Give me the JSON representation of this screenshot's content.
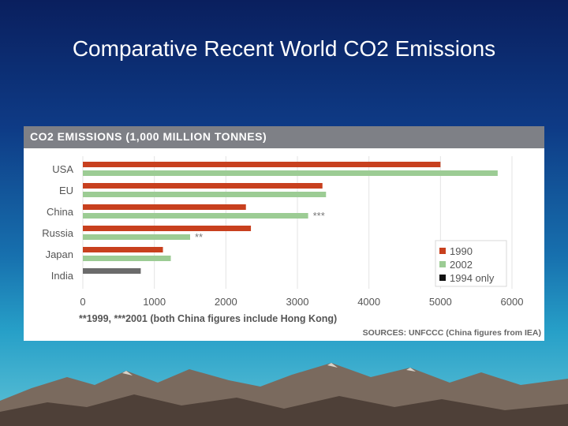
{
  "slide": {
    "title": "Comparative Recent World CO2 Emissions"
  },
  "colors": {
    "series_1990": "#c8401e",
    "series_2002": "#9ccc94",
    "series_1994": "#6b6b6b",
    "header_bg": "#7e8086"
  },
  "chart_data": {
    "type": "bar",
    "orientation": "horizontal",
    "title": "CO2 EMISSIONS (1,000 MILLION TONNES)",
    "categories": [
      "USA",
      "EU",
      "China",
      "Russia",
      "Japan",
      "India"
    ],
    "series": [
      {
        "name": "1990",
        "values": [
          5000,
          3350,
          2280,
          2350,
          1120,
          null
        ]
      },
      {
        "name": "2002",
        "values": [
          5800,
          3400,
          3150,
          1500,
          1230,
          null
        ]
      },
      {
        "name": "1994 only",
        "values": [
          null,
          null,
          null,
          null,
          null,
          810
        ]
      }
    ],
    "annotations": [
      {
        "category": "China",
        "series": "2002",
        "text": "***"
      },
      {
        "category": "Russia",
        "series": "2002",
        "text": "**"
      }
    ],
    "xlim": [
      0,
      6000
    ],
    "xticks": [
      0,
      1000,
      2000,
      3000,
      4000,
      5000,
      6000
    ],
    "grid": true,
    "legend_position": "bottom-right",
    "footnote": "**1999, ***2001 (both China figures include Hong Kong)",
    "source": "SOURCES: UNFCCC (China figures from IEA)"
  }
}
